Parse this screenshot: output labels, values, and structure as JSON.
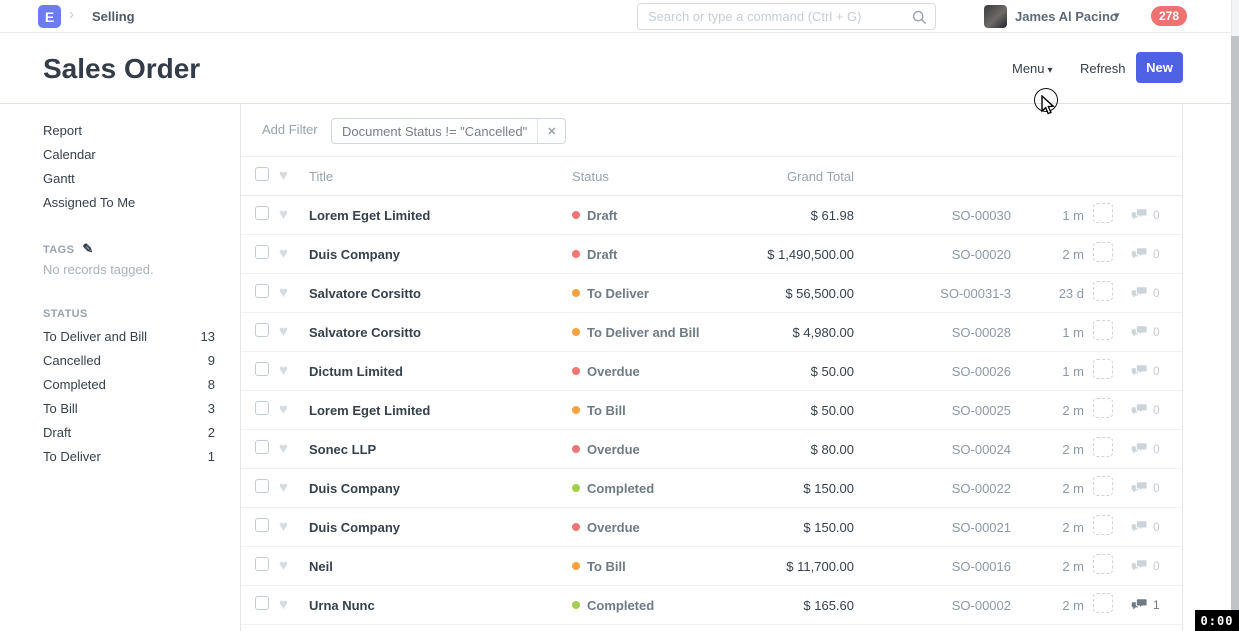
{
  "navbar": {
    "logo_letter": "E",
    "breadcrumb": "Selling",
    "search_placeholder": "Search or type a command (Ctrl + G)",
    "user_name": "James Al Pacino",
    "notification_count": "278"
  },
  "page_header": {
    "title": "Sales Order",
    "menu_label": "Menu",
    "refresh_label": "Refresh",
    "new_label": "New"
  },
  "sidebar": {
    "links": [
      "Report",
      "Calendar",
      "Gantt",
      "Assigned To Me"
    ],
    "tags_label": "TAGS",
    "tags_empty": "No records tagged.",
    "status_label": "STATUS",
    "status_items": [
      {
        "label": "To Deliver and Bill",
        "count": "13"
      },
      {
        "label": "Cancelled",
        "count": "9"
      },
      {
        "label": "Completed",
        "count": "8"
      },
      {
        "label": "To Bill",
        "count": "3"
      },
      {
        "label": "Draft",
        "count": "2"
      },
      {
        "label": "To Deliver",
        "count": "1"
      }
    ]
  },
  "filters": {
    "add_filter_label": "Add Filter",
    "chip_text": "Document Status != \"Cancelled\""
  },
  "table": {
    "headers": {
      "title": "Title",
      "status": "Status",
      "grand_total": "Grand Total"
    },
    "status_colors": {
      "Draft": "#f47575",
      "Overdue": "#f47575",
      "To Deliver": "#f8a340",
      "To Deliver and Bill": "#f8a340",
      "To Bill": "#f8a340",
      "Completed": "#a3cf50"
    },
    "rows": [
      {
        "title": "Lorem Eget Limited",
        "status": "Draft",
        "grand_total": "$ 61.98",
        "so_number": "SO-00030",
        "modified": "1 m",
        "comment_count": "0"
      },
      {
        "title": "Duis Company",
        "status": "Draft",
        "grand_total": "$ 1,490,500.00",
        "so_number": "SO-00020",
        "modified": "2 m",
        "comment_count": "0"
      },
      {
        "title": "Salvatore Corsitto",
        "status": "To Deliver",
        "grand_total": "$ 56,500.00",
        "so_number": "SO-00031-3",
        "modified": "23 d",
        "comment_count": "0"
      },
      {
        "title": "Salvatore Corsitto",
        "status": "To Deliver and Bill",
        "grand_total": "$ 4,980.00",
        "so_number": "SO-00028",
        "modified": "1 m",
        "comment_count": "0"
      },
      {
        "title": "Dictum Limited",
        "status": "Overdue",
        "grand_total": "$ 50.00",
        "so_number": "SO-00026",
        "modified": "1 m",
        "comment_count": "0"
      },
      {
        "title": "Lorem Eget Limited",
        "status": "To Bill",
        "grand_total": "$ 50.00",
        "so_number": "SO-00025",
        "modified": "2 m",
        "comment_count": "0"
      },
      {
        "title": "Sonec LLP",
        "status": "Overdue",
        "grand_total": "$ 80.00",
        "so_number": "SO-00024",
        "modified": "2 m",
        "comment_count": "0"
      },
      {
        "title": "Duis Company",
        "status": "Completed",
        "grand_total": "$ 150.00",
        "so_number": "SO-00022",
        "modified": "2 m",
        "comment_count": "0"
      },
      {
        "title": "Duis Company",
        "status": "Overdue",
        "grand_total": "$ 150.00",
        "so_number": "SO-00021",
        "modified": "2 m",
        "comment_count": "0"
      },
      {
        "title": "Neil",
        "status": "To Bill",
        "grand_total": "$ 11,700.00",
        "so_number": "SO-00016",
        "modified": "2 m",
        "comment_count": "0"
      },
      {
        "title": "Urna Nunc",
        "status": "Completed",
        "grand_total": "$ 165.60",
        "so_number": "SO-00002",
        "modified": "2 m",
        "comment_count": "1"
      }
    ]
  },
  "colors": {
    "brand_logo": "#6c7cf0",
    "primary_button": "#4f61e4",
    "notification_badge": "#ef7272",
    "red_indicator": "#f47575",
    "orange_indicator": "#f8a340",
    "green_indicator": "#a3cf50"
  },
  "overlay": {
    "timer": "0:00"
  }
}
